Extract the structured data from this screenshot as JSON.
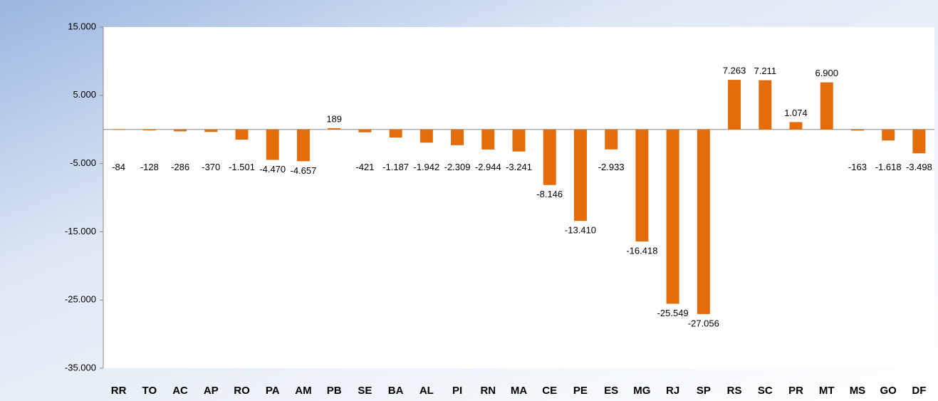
{
  "chart_data": {
    "type": "bar",
    "categories": [
      "RR",
      "TO",
      "AC",
      "AP",
      "RO",
      "PA",
      "AM",
      "PB",
      "SE",
      "BA",
      "AL",
      "PI",
      "RN",
      "MA",
      "CE",
      "PE",
      "ES",
      "MG",
      "RJ",
      "SP",
      "RS",
      "SC",
      "PR",
      "MT",
      "MS",
      "GO",
      "DF"
    ],
    "values": [
      -84,
      -128,
      -286,
      -370,
      -1501,
      -4470,
      -4657,
      189,
      -421,
      -1187,
      -1942,
      -2309,
      -2944,
      -3241,
      -8146,
      -13410,
      -2933,
      -16418,
      -25549,
      -27056,
      7263,
      7211,
      1074,
      6900,
      -163,
      -1618,
      -3498
    ],
    "value_labels": [
      "-84",
      "-128",
      "-286",
      "-370",
      "-1.501",
      "-4.470",
      "-4.657",
      "189",
      "-421",
      "-1.187",
      "-1.942",
      "-2.309",
      "-2.944",
      "-3.241",
      "-8.146",
      "-13.410",
      "-2.933",
      "-16.418",
      "-25.549",
      "-27.056",
      "7.263",
      "7.211",
      "1.074",
      "6.900",
      "-163",
      "-1.618",
      "-3.498"
    ],
    "color": "#e46c0a",
    "ylim": [
      -35000,
      15000
    ],
    "yticks": [
      {
        "value": -35000,
        "label": "-35.000"
      },
      {
        "value": -25000,
        "label": "-25.000"
      },
      {
        "value": -15000,
        "label": "-15.000"
      },
      {
        "value": -5000,
        "label": "-5.000"
      },
      {
        "value": 5000,
        "label": "5.000"
      },
      {
        "value": 15000,
        "label": "15.000"
      }
    ]
  }
}
